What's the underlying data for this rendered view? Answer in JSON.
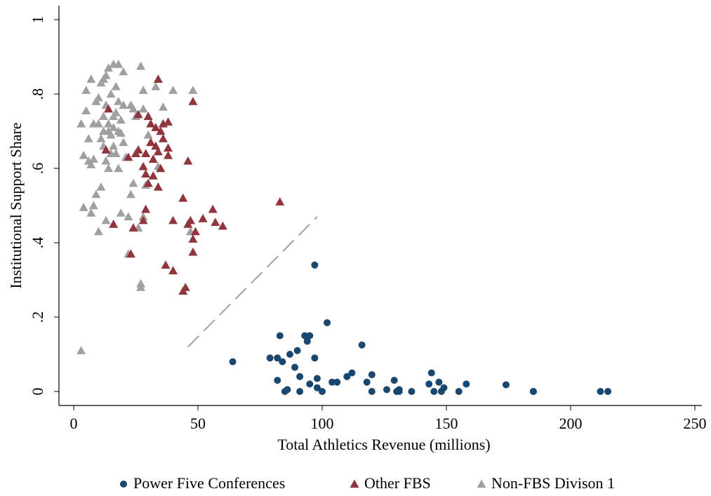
{
  "chart_data": {
    "type": "scatter",
    "x_label": "Total Athletics Revenue (millions)",
    "y_label": "Institutional Support Share",
    "xlim": [
      0,
      250
    ],
    "ylim": [
      0,
      1
    ],
    "xticks": [
      0,
      50,
      100,
      150,
      200,
      250
    ],
    "yticks": [
      0,
      {
        "value": 0.2,
        "label": ".2"
      },
      {
        "value": 0.4,
        "label": ".4"
      },
      {
        "value": 0.6,
        "label": ".6"
      },
      {
        "value": 0.8,
        "label": ".8"
      },
      1
    ],
    "reference_line": {
      "color": "#a0a0a0",
      "x": [
        46,
        98
      ],
      "y": [
        0.12,
        0.47
      ]
    },
    "series": [
      {
        "name": "Power Five Conferences",
        "color": "#1a476f",
        "marker": "circle",
        "x": [
          64,
          79,
          82,
          83,
          84,
          82,
          85,
          86,
          87,
          89,
          90,
          91,
          91,
          93,
          94,
          95,
          95,
          97,
          97,
          98,
          98,
          100,
          102,
          104,
          106,
          110,
          112,
          116,
          118,
          120,
          120,
          126,
          129,
          130,
          131,
          136,
          143,
          144,
          145,
          147,
          148,
          149,
          155,
          158,
          174,
          185,
          185,
          212,
          215,
          131
        ],
        "values": [
          0.08,
          0.09,
          0.09,
          0.15,
          0.08,
          0.03,
          0,
          0.005,
          0.1,
          0.065,
          0.11,
          0.04,
          0,
          0.15,
          0.135,
          0.15,
          0.02,
          0.09,
          0.34,
          0.035,
          0.01,
          0,
          0.185,
          0.025,
          0.025,
          0.04,
          0.05,
          0.125,
          0.025,
          0.045,
          0,
          0.005,
          0.03,
          0,
          0.005,
          0,
          0.02,
          0.05,
          0,
          0.025,
          0,
          0.01,
          0,
          0.02,
          0.018,
          0,
          0,
          0,
          0,
          0
        ]
      },
      {
        "name": "Other FBS",
        "color": "#90353b",
        "marker": "triangle",
        "x": [
          13,
          14,
          16,
          22,
          23,
          24,
          25,
          26,
          26,
          28,
          28,
          29,
          29,
          29,
          30,
          30,
          31,
          31,
          32,
          32,
          33,
          33,
          34,
          34,
          34,
          35,
          35,
          36,
          36,
          37,
          38,
          38,
          38,
          40,
          40,
          44,
          44,
          45,
          46,
          46,
          47,
          48,
          48,
          48,
          49,
          52,
          56,
          57,
          60,
          83
        ],
        "values": [
          0.65,
          0.76,
          0.45,
          0.63,
          0.37,
          0.44,
          0.64,
          0.65,
          0.745,
          0.46,
          0.605,
          0.64,
          0.585,
          0.49,
          0.56,
          0.74,
          0.72,
          0.67,
          0.625,
          0.58,
          0.71,
          0.66,
          0.645,
          0.84,
          0.55,
          0.6,
          0.7,
          0.72,
          0.68,
          0.34,
          0.655,
          0.725,
          0.635,
          0.325,
          0.46,
          0.27,
          0.52,
          0.28,
          0.62,
          0.45,
          0.46,
          0.41,
          0.78,
          0.375,
          0.43,
          0.465,
          0.49,
          0.455,
          0.445,
          0.51
        ]
      },
      {
        "name": "Non-FBS Divison 1",
        "color": "#a0a0a0",
        "marker": "triangle",
        "x": [
          3,
          3,
          4,
          4,
          5,
          5,
          6,
          6,
          7,
          7,
          8,
          8,
          8,
          9,
          10,
          10,
          10,
          11,
          11,
          11,
          12,
          12,
          12,
          13,
          13,
          13,
          13,
          14,
          14,
          14,
          15,
          15,
          15,
          16,
          16,
          16,
          17,
          17,
          17,
          18,
          18,
          18,
          19,
          19,
          19,
          20,
          20,
          20,
          21,
          22,
          22,
          23,
          23,
          24,
          24,
          25,
          26,
          27,
          27,
          27,
          28,
          28,
          28,
          29,
          30,
          31,
          33,
          34,
          36,
          40,
          47,
          48,
          7,
          9,
          12,
          14,
          16,
          18
        ],
        "values": [
          0.11,
          0.72,
          0.635,
          0.495,
          0.81,
          0.755,
          0.62,
          0.68,
          0.48,
          0.84,
          0.72,
          0.5,
          0.625,
          0.53,
          0.43,
          0.72,
          0.79,
          0.55,
          0.83,
          0.68,
          0.84,
          0.74,
          0.7,
          0.85,
          0.77,
          0.62,
          0.46,
          0.6,
          0.87,
          0.72,
          0.64,
          0.69,
          0.8,
          0.88,
          0.66,
          0.71,
          0.75,
          0.82,
          0.64,
          0.88,
          0.78,
          0.6,
          0.73,
          0.695,
          0.48,
          0.86,
          0.67,
          0.77,
          0.63,
          0.47,
          0.37,
          0.77,
          0.53,
          0.56,
          0.76,
          0.74,
          0.44,
          0.875,
          0.29,
          0.28,
          0.81,
          0.76,
          0.47,
          0.555,
          0.69,
          0.67,
          0.82,
          0.605,
          0.765,
          0.81,
          0.43,
          0.81,
          0.61,
          0.78,
          0.66,
          0.7,
          0.74,
          0.7
        ]
      }
    ]
  }
}
